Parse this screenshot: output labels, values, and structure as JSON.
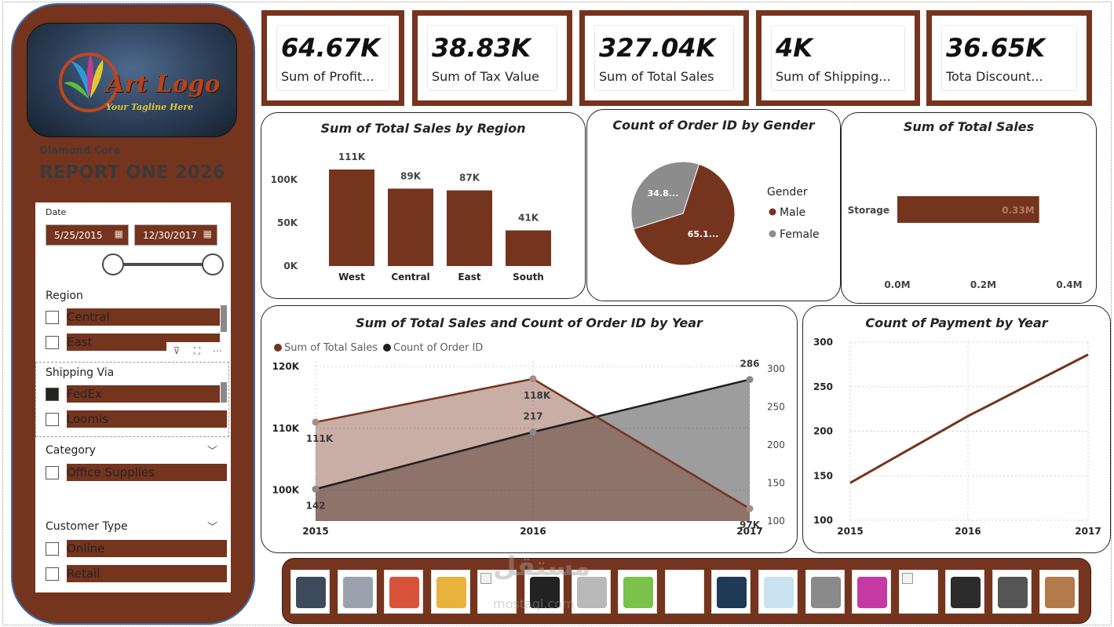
{
  "sidebar": {
    "logo": {
      "main": "Art Logo",
      "tagline": "Your Tagline Here"
    },
    "company": "Diamond Core",
    "report_title": "REPORT ONE 2026",
    "date_slicer": {
      "label": "Date",
      "start": "5/25/2015",
      "end": "12/30/2017",
      "icon": "calendar-icon"
    },
    "region_slicer": {
      "label": "Region",
      "items": [
        {
          "label": "Central",
          "checked": false
        },
        {
          "label": "East",
          "checked": false
        }
      ]
    },
    "shipping_slicer": {
      "label": "Shipping Via",
      "items": [
        {
          "label": "FedEx",
          "checked": true
        },
        {
          "label": "Loomis",
          "checked": false
        }
      ]
    },
    "category_slicer": {
      "label": "Category",
      "items": [
        {
          "label": "Office Supplies",
          "checked": false
        }
      ]
    },
    "customer_slicer": {
      "label": "Customer Type",
      "items": [
        {
          "label": "Online",
          "checked": false
        },
        {
          "label": "Retail",
          "checked": false
        }
      ]
    },
    "tools": {
      "filter": "⊽",
      "focus": "⛶",
      "more": "⋯"
    }
  },
  "kpis": [
    {
      "value": "64.67K",
      "label": "Sum of Profit..."
    },
    {
      "value": "38.83K",
      "label": "Sum of Tax Value"
    },
    {
      "value": "327.04K",
      "label": "Sum of Total Sales"
    },
    {
      "value": "4K",
      "label": "Sum of Shipping..."
    },
    {
      "value": "36.65K",
      "label": "Tota Discount..."
    }
  ],
  "chart_data": [
    {
      "id": "region",
      "type": "bar",
      "title": "Sum of Total Sales by Region",
      "categories": [
        "West",
        "Central",
        "East",
        "South"
      ],
      "values": [
        111,
        89,
        87,
        41
      ],
      "data_labels": [
        "111K",
        "89K",
        "87K",
        "41K"
      ],
      "y_ticks": [
        "0K",
        "50K",
        "100K"
      ],
      "ylim": [
        0,
        111
      ],
      "color": "#75341d"
    },
    {
      "id": "gender",
      "type": "pie",
      "title": "Count of Order ID by Gender",
      "legend_title": "Gender",
      "categories": [
        "Male",
        "Female"
      ],
      "values": [
        65.1,
        34.8
      ],
      "data_labels": [
        "65.1...",
        "34.8..."
      ],
      "colors": [
        "#75341d",
        "#8c8c8c"
      ],
      "legend": "right"
    },
    {
      "id": "category",
      "type": "bar",
      "orientation": "horizontal",
      "title": "Sum of Total Sales",
      "categories": [
        "Storage"
      ],
      "values": [
        0.33
      ],
      "data_labels": [
        "0.33M"
      ],
      "x_ticks": [
        "0.0M",
        "0.2M",
        "0.4M"
      ],
      "xlim": [
        0,
        0.4
      ],
      "color": "#75341d"
    },
    {
      "id": "yearly",
      "type": "area",
      "title": "Sum of Total Sales and Count of Order ID by Year",
      "x": [
        "2015",
        "2016",
        "2017"
      ],
      "series": [
        {
          "name": "Sum of Total Sales",
          "values": [
            111,
            118,
            97
          ],
          "data_labels": [
            "111K",
            "118K",
            "97K"
          ],
          "color": "#75341d",
          "axis": "left"
        },
        {
          "name": "Count of Order ID",
          "values": [
            142,
            217,
            286
          ],
          "data_labels": [
            "142",
            "217",
            "286"
          ],
          "color": "#1f1f1f",
          "axis": "right"
        }
      ],
      "y_left_ticks": [
        "100K",
        "110K",
        "120K"
      ],
      "y_left_range": [
        95,
        120
      ],
      "y_right_ticks": [
        "100",
        "150",
        "200",
        "250",
        "300"
      ],
      "y_right_range": [
        100,
        300
      ],
      "legend": "top-left",
      "grid": true
    },
    {
      "id": "payment",
      "type": "line",
      "title": "Count of Payment by Year",
      "x": [
        "2015",
        "2016",
        "2017"
      ],
      "values": [
        142,
        217,
        286
      ],
      "y_ticks": [
        "100",
        "150",
        "200",
        "250",
        "300"
      ],
      "ylim": [
        100,
        300
      ],
      "color": "#75341d",
      "grid": true
    }
  ],
  "products": [
    {
      "icon": "appliances-icon",
      "broken": false
    },
    {
      "icon": "fridge-icon",
      "broken": false
    },
    {
      "icon": "art-supplies-icon",
      "broken": false
    },
    {
      "icon": "paper-icon",
      "broken": false
    },
    {
      "icon": "image-icon",
      "broken": true
    },
    {
      "icon": "chair-icon",
      "broken": false
    },
    {
      "icon": "copier-icon",
      "broken": false
    },
    {
      "icon": "envelopes-icon",
      "broken": false
    },
    {
      "icon": "paperclip-icon",
      "broken": false
    },
    {
      "icon": "armchair-icon",
      "broken": false
    },
    {
      "icon": "labels-icon",
      "broken": false
    },
    {
      "icon": "shredder-icon",
      "broken": false
    },
    {
      "icon": "trays-icon",
      "broken": false
    },
    {
      "icon": "image-icon",
      "broken": true
    },
    {
      "icon": "cabinet-icon",
      "broken": false
    },
    {
      "icon": "desk-supplies-icon",
      "broken": false
    },
    {
      "icon": "tables-icon",
      "broken": false
    }
  ],
  "watermark": {
    "main": "مستقل",
    "sub": "mostaql.com"
  }
}
